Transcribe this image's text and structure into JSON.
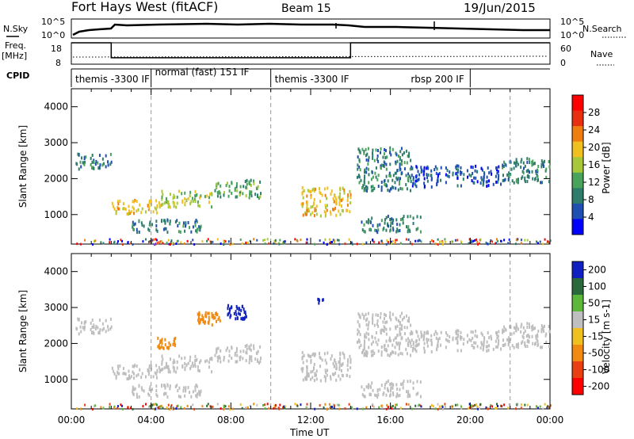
{
  "header": {
    "station": "Fort Hays West (fitACF)",
    "beam": "Beam 15",
    "date": "19/Jun/2015"
  },
  "top_panels": {
    "nsky_label": "N.Sky",
    "nsky_ticks": [
      "10^5",
      "10^0"
    ],
    "nsearch_label": "N.Search",
    "nsearch_ticks": [
      "10^5",
      "10^0"
    ],
    "freq_label": "Freq.",
    "freq_unit": "[MHz]",
    "freq_ticks": [
      "18",
      "8"
    ],
    "nave_label": "Nave",
    "nave_ticks": [
      "60",
      "0"
    ],
    "cpid_label": "CPID",
    "cpid_segments": [
      {
        "label": "themis -3300 IF",
        "start": 0,
        "end": 4
      },
      {
        "label": "normal (fast) 151 IF",
        "start": 4,
        "end": 10
      },
      {
        "label": "themis -3300 IF",
        "start": 10,
        "end": 20
      },
      {
        "label": "rbsp 200 IF",
        "start": 20,
        "end": 24
      }
    ]
  },
  "xaxis": {
    "label": "Time UT",
    "ticks": [
      "00:00",
      "04:00",
      "08:00",
      "12:00",
      "16:00",
      "20:00",
      "00:00"
    ]
  },
  "power_panel": {
    "ylabel": "Slant Range [km]",
    "yticks": [
      "1000",
      "2000",
      "3000",
      "4000"
    ],
    "colorbar_label": "Power [dB]",
    "colorbar_ticks": [
      "4",
      "8",
      "12",
      "16",
      "20",
      "24",
      "28"
    ]
  },
  "velocity_panel": {
    "ylabel": "Slant Range [km]",
    "yticks": [
      "1000",
      "2000",
      "3000",
      "4000"
    ],
    "colorbar_label": "Velocity [m s-1]",
    "colorbar_ticks": [
      "200",
      "100",
      "50",
      "15",
      "-15",
      "-50",
      "-100",
      "-200"
    ]
  },
  "colors": {
    "power_scale": [
      "#0000ff",
      "#1f4fb0",
      "#2e7d6a",
      "#4aa35a",
      "#a8c83a",
      "#f0c020",
      "#f07d10",
      "#e83010",
      "#ff0000"
    ],
    "velocity_scale": [
      "#1020c0",
      "#2a6a3a",
      "#5cb83a",
      "#bfbfbf",
      "#f0c020",
      "#f08a10",
      "#e84010",
      "#ff0000"
    ],
    "ground_scatter": "#bebebe"
  },
  "chart_data": {
    "type": "heatmap",
    "x_unit": "hours UT",
    "x_range": [
      0,
      24
    ],
    "y_range": [
      180,
      4500
    ],
    "frequency_MHz": [
      {
        "start": 0,
        "end": 2,
        "value": 18
      },
      {
        "start": 2,
        "end": 14,
        "value": 11
      },
      {
        "start": 14,
        "end": 24,
        "value": 18
      }
    ],
    "power_scatter_regions": [
      {
        "t0": 0.2,
        "t1": 2.0,
        "r0": 2300,
        "r1": 2750,
        "dB": 10
      },
      {
        "t0": 2.0,
        "t1": 4.5,
        "r0": 1050,
        "r1": 1450,
        "dB": 24
      },
      {
        "t0": 4.5,
        "t1": 7.0,
        "r0": 1250,
        "r1": 1700,
        "dB": 20
      },
      {
        "t0": 7.0,
        "t1": 9.5,
        "r0": 1500,
        "r1": 2000,
        "dB": 14
      },
      {
        "t0": 3.0,
        "t1": 6.5,
        "r0": 550,
        "r1": 900,
        "dB": 12
      },
      {
        "t0": 11.5,
        "t1": 14.0,
        "r0": 1000,
        "r1": 1800,
        "dB": 22
      },
      {
        "t0": 14.5,
        "t1": 17.5,
        "r0": 550,
        "r1": 1000,
        "dB": 12
      },
      {
        "t0": 14.3,
        "t1": 17.0,
        "r0": 1700,
        "r1": 2900,
        "dB": 12
      },
      {
        "t0": 17.0,
        "t1": 21.5,
        "r0": 1800,
        "r1": 2400,
        "dB": 8
      },
      {
        "t0": 21.5,
        "t1": 24.0,
        "r0": 1900,
        "r1": 2600,
        "dB": 10
      }
    ],
    "velocity_scatter_regions": [
      {
        "t0": 4.3,
        "t1": 5.3,
        "r0": 1900,
        "r1": 2200,
        "v": -80
      },
      {
        "t0": 6.3,
        "t1": 7.5,
        "r0": 2550,
        "r1": 2900,
        "v": -60
      },
      {
        "t0": 7.8,
        "t1": 8.8,
        "r0": 2700,
        "r1": 3100,
        "v": 200
      },
      {
        "t0": 12.3,
        "t1": 12.6,
        "r0": 3150,
        "r1": 3350,
        "v": 200
      }
    ]
  }
}
